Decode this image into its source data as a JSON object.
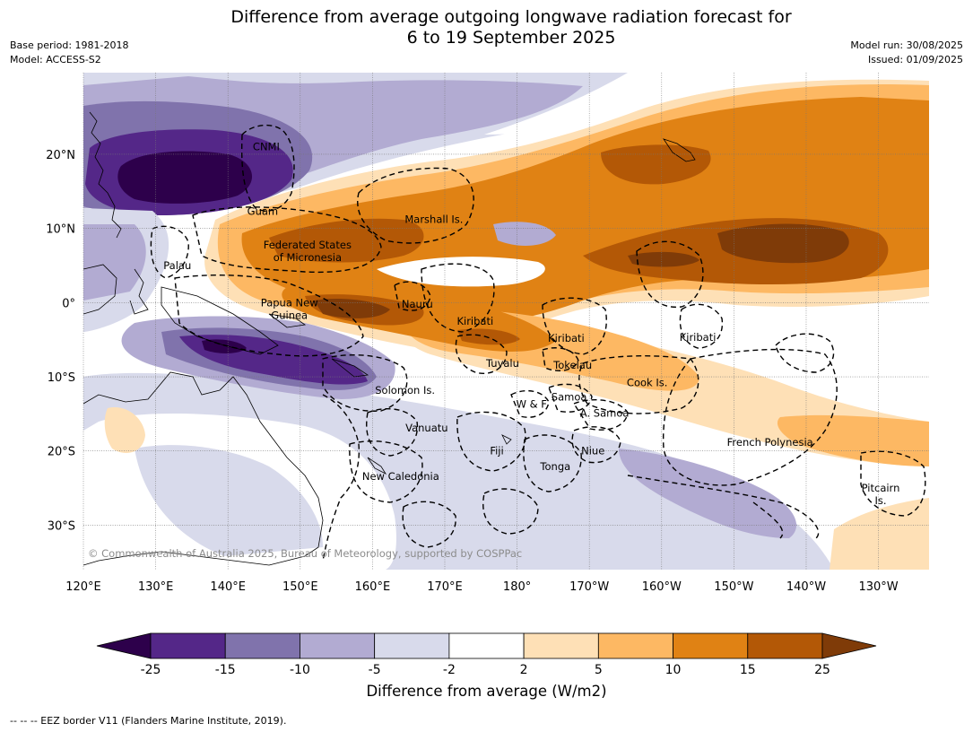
{
  "title_line1": "Difference from average outgoing longwave radiation forecast for",
  "title_line2": "6 to 19 September 2025",
  "meta_left": [
    "Base period: 1981-2018",
    "Model: ACCESS-S2"
  ],
  "meta_right": [
    "Model run: 30/08/2025",
    "Issued: 01/09/2025"
  ],
  "copyright": "© Commonwealth of Australia 2025, Bureau of Meteorology, supported by COSPPac",
  "footer": "--  --  -- EEZ border V11 (Flanders Marine Institute, 2019).",
  "legend": {
    "title": "Difference from average (W/m2)",
    "ticks": [
      "-25",
      "-15",
      "-10",
      "-5",
      "-2",
      "2",
      "5",
      "10",
      "15",
      "25"
    ],
    "colors": [
      "#2d004b",
      "#542788",
      "#8073ac",
      "#b2abd2",
      "#d8daeb",
      "#ffffff",
      "#fee0b6",
      "#fdb863",
      "#e08214",
      "#b35806",
      "#7f3b08"
    ]
  },
  "map": {
    "lon_range": [
      120,
      237
    ],
    "lat_range": [
      -36,
      31
    ],
    "lon_ticks": [
      {
        "v": 120,
        "t": "120°E"
      },
      {
        "v": 130,
        "t": "130°E"
      },
      {
        "v": 140,
        "t": "140°E"
      },
      {
        "v": 150,
        "t": "150°E"
      },
      {
        "v": 160,
        "t": "160°E"
      },
      {
        "v": 170,
        "t": "170°E"
      },
      {
        "v": 180,
        "t": "180°"
      },
      {
        "v": 190,
        "t": "170°W"
      },
      {
        "v": 200,
        "t": "160°W"
      },
      {
        "v": 210,
        "t": "150°W"
      },
      {
        "v": 220,
        "t": "140°W"
      },
      {
        "v": 230,
        "t": "130°W"
      }
    ],
    "lat_ticks": [
      {
        "v": 20,
        "t": "20°N"
      },
      {
        "v": 10,
        "t": "10°N"
      },
      {
        "v": 0,
        "t": "0°"
      },
      {
        "v": -10,
        "t": "10°S"
      },
      {
        "v": -20,
        "t": "20°S"
      },
      {
        "v": -30,
        "t": "30°S"
      }
    ],
    "places": [
      {
        "name": "CNMI",
        "lon": 145.3,
        "lat": 21.0
      },
      {
        "name": "Guam",
        "lon": 144.8,
        "lat": 12.3
      },
      {
        "name": "Marshall Is.",
        "lon": 168.5,
        "lat": 11.2
      },
      {
        "name": "Federated States",
        "lon": 151.0,
        "lat": 7.8
      },
      {
        "name": "of Micronesia",
        "lon": 151.0,
        "lat": 6.1
      },
      {
        "name": "Palau",
        "lon": 133.0,
        "lat": 5.0
      },
      {
        "name": "Papua New",
        "lon": 148.5,
        "lat": 0.0
      },
      {
        "name": "Guinea",
        "lon": 148.5,
        "lat": -1.7
      },
      {
        "name": "Nauru",
        "lon": 166.2,
        "lat": -0.2
      },
      {
        "name": "Kiribati",
        "lon": 174.2,
        "lat": -2.5
      },
      {
        "name": "Kiribati",
        "lon": 186.8,
        "lat": -4.8
      },
      {
        "name": "Kiribati",
        "lon": 205.0,
        "lat": -4.7
      },
      {
        "name": "Tuvalu",
        "lon": 178.0,
        "lat": -8.2
      },
      {
        "name": "Tokelau",
        "lon": 187.7,
        "lat": -8.4
      },
      {
        "name": "Cook Is.",
        "lon": 198.0,
        "lat": -10.8
      },
      {
        "name": "Solomon Is.",
        "lon": 164.5,
        "lat": -11.8
      },
      {
        "name": "W & F",
        "lon": 182.0,
        "lat": -13.7
      },
      {
        "name": "Samoa",
        "lon": 187.2,
        "lat": -12.7
      },
      {
        "name": "A. Samoa",
        "lon": 192.1,
        "lat": -14.9
      },
      {
        "name": "Vanuatu",
        "lon": 167.5,
        "lat": -16.9
      },
      {
        "name": "Fiji",
        "lon": 177.2,
        "lat": -20.0
      },
      {
        "name": "Niue",
        "lon": 190.5,
        "lat": -20.0
      },
      {
        "name": "Tonga",
        "lon": 185.3,
        "lat": -22.1
      },
      {
        "name": "French Polynesia",
        "lon": 215.0,
        "lat": -18.8
      },
      {
        "name": "New Caledonia",
        "lon": 163.9,
        "lat": -23.4
      },
      {
        "name": "Pitcairn",
        "lon": 230.3,
        "lat": -25.0
      },
      {
        "name": "Is.",
        "lon": 230.3,
        "lat": -26.7
      }
    ]
  }
}
